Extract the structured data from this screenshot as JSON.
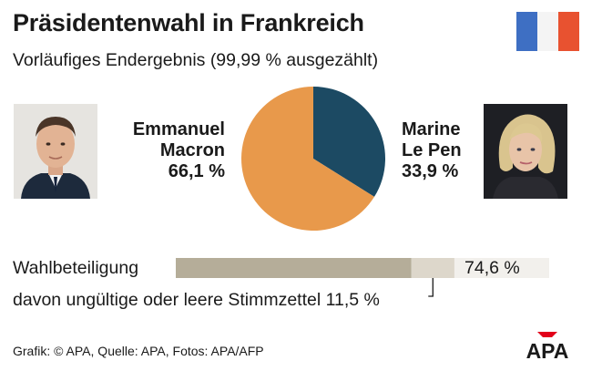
{
  "header": {
    "title": "Präsidentenwahl in Frankreich",
    "subtitle": "Vorläufiges Endergebnis (99,99 % ausgezählt)"
  },
  "flag_colors": [
    "#3e6fc3",
    "#f4f4f4",
    "#e85230"
  ],
  "candidates": [
    {
      "first": "Emmanuel",
      "last": "Macron",
      "result": "66,1 %",
      "share": 66.1,
      "color": "#e8994b"
    },
    {
      "first": "Marine",
      "last": "Le Pen",
      "result": "33,9 %",
      "share": 33.9,
      "color": "#1c4a63"
    }
  ],
  "chart_data": [
    {
      "type": "pie",
      "title": "",
      "categories": [
        "Emmanuel Macron",
        "Marine Le Pen"
      ],
      "values": [
        66.1,
        33.9
      ],
      "colors": [
        "#e8994b",
        "#1c4a63"
      ]
    },
    {
      "type": "bar",
      "orientation": "horizontal",
      "categories": [
        "Wahlbeteiligung"
      ],
      "values": [
        74.6
      ],
      "value_label": "74,6 %",
      "sub_values": [
        11.5
      ],
      "sub_value_label": "davon ungültige oder leere Stimmzettel 11,5 %",
      "xlim": [
        0,
        100
      ],
      "colors": {
        "valid": "#b5ad99",
        "invalid": "#ddd7cb",
        "background": "#f2f0ec"
      }
    }
  ],
  "turnout": {
    "label": "Wahlbeteiligung",
    "value_text": "74,6 %",
    "invalid_text": "davon ungültige oder leere Stimmzettel 11,5 %"
  },
  "footer": "Grafik: © APA, Quelle: APA, Fotos: APA/AFP",
  "logo_text": "APA"
}
